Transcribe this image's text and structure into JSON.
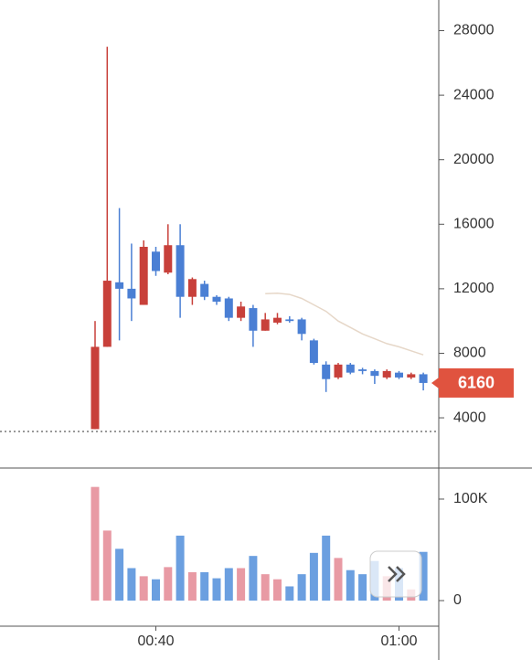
{
  "chart_data": {
    "type": "candlestick",
    "categories": [
      null,
      null,
      null,
      null,
      null,
      "00:40",
      null,
      null,
      null,
      null,
      null,
      null,
      null,
      null,
      null,
      null,
      null,
      null,
      null,
      null,
      null,
      null,
      null,
      null,
      null,
      "01:00",
      null,
      null
    ],
    "open": [
      3300,
      8400,
      12400,
      12000,
      11000,
      14300,
      13000,
      14700,
      11500,
      12300,
      11500,
      11400,
      10200,
      10800,
      9400,
      9900,
      10100,
      10100,
      8800,
      7300,
      6500,
      7300,
      7000,
      6900,
      6500,
      6800,
      6500,
      6700
    ],
    "high": [
      10000,
      27000,
      17000,
      14800,
      15000,
      14600,
      16000,
      16000,
      12700,
      12500,
      11600,
      11500,
      11200,
      11000,
      10500,
      10500,
      10300,
      10200,
      8900,
      7500,
      7400,
      7400,
      7100,
      7000,
      7000,
      6900,
      6800,
      6800
    ],
    "low": [
      3300,
      8400,
      8800,
      10000,
      11000,
      12800,
      12900,
      10200,
      11000,
      11300,
      11000,
      10000,
      10000,
      8400,
      9400,
      9800,
      9900,
      8800,
      7300,
      5600,
      6400,
      6700,
      6700,
      6100,
      6400,
      6400,
      6400,
      5700
    ],
    "close": [
      8400,
      12500,
      12000,
      11400,
      14600,
      13100,
      14700,
      11500,
      12600,
      11500,
      11200,
      10200,
      10900,
      9400,
      10100,
      10200,
      10000,
      9200,
      7400,
      6400,
      7300,
      6800,
      6900,
      6600,
      6900,
      6500,
      6700,
      6160
    ],
    "up_color": "#c8403a",
    "down_color": "#4a7fd4",
    "ylim": [
      1000,
      29900
    ],
    "yticks": [
      4000,
      8000,
      12000,
      16000,
      20000,
      24000,
      28000
    ],
    "last_price": 6160,
    "last_price_color": "#e0533f",
    "price_line": 3150,
    "ma": {
      "color": "#e6d7c8",
      "values": [
        null,
        null,
        null,
        null,
        null,
        null,
        null,
        null,
        null,
        null,
        null,
        null,
        null,
        null,
        11700,
        11720,
        11650,
        11400,
        11000,
        10600,
        10000,
        9600,
        9200,
        8900,
        8600,
        8400,
        8150,
        7900
      ]
    },
    "volume": {
      "values": [
        112000,
        69000,
        51000,
        32000,
        24000,
        21000,
        33000,
        64000,
        28000,
        28000,
        22000,
        32000,
        32000,
        44000,
        26000,
        21000,
        14000,
        26000,
        47000,
        64000,
        42000,
        30000,
        26000,
        39000,
        24000,
        32000,
        11000,
        48000
      ],
      "up_color": "#e89aa4",
      "down_color": "#6b9fe0",
      "ylim": [
        -25200,
        130600
      ],
      "yticks": [
        0,
        {
          "value": 100000,
          "label": "100K"
        }
      ]
    }
  }
}
